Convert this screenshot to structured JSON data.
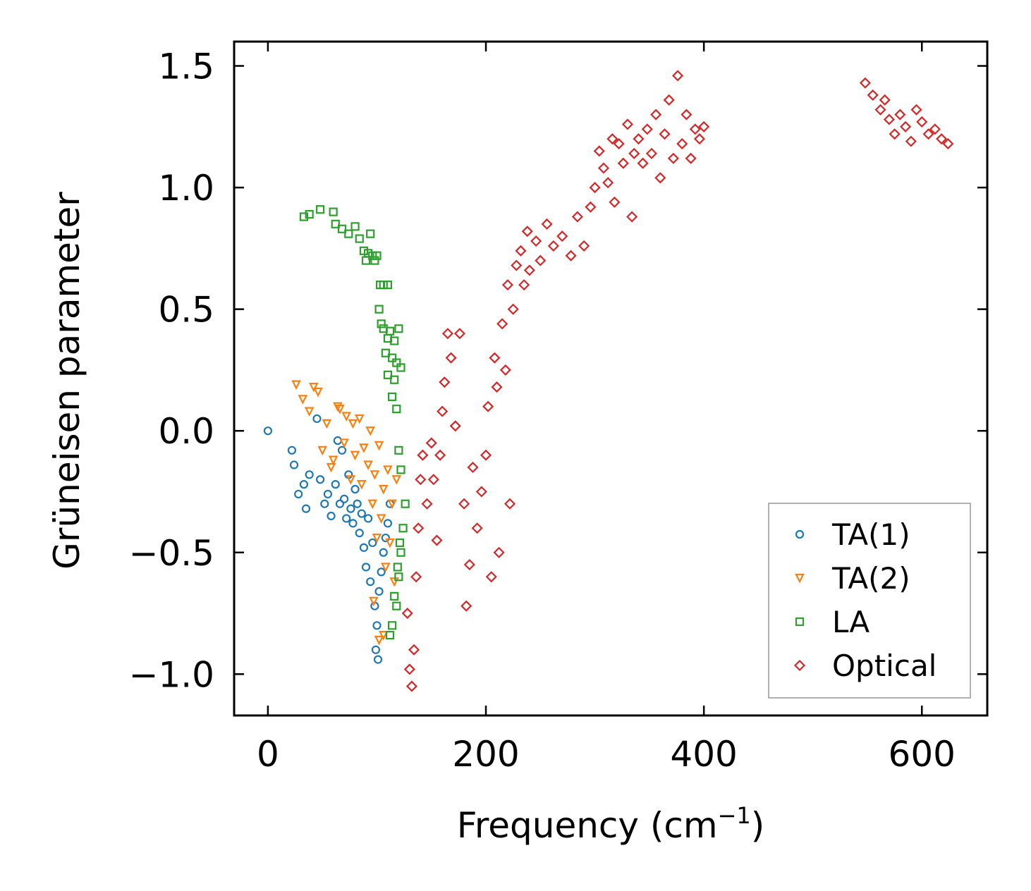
{
  "chart_data": {
    "type": "scatter",
    "xlabel": "Frequency (cm",
    "xlabel_sup": "−1",
    "xlabel_end": ")",
    "ylabel": "Grüneisen parameter",
    "xlim": [
      -31,
      660
    ],
    "ylim": [
      -1.17,
      1.6
    ],
    "xticks": [
      0,
      200,
      400,
      600
    ],
    "yticks": [
      -1.0,
      -0.5,
      0.0,
      0.5,
      1.0,
      1.5
    ],
    "xtick_labels": [
      "0",
      "200",
      "400",
      "600"
    ],
    "ytick_labels": [
      "−1.0",
      "−0.5",
      "0.0",
      "0.5",
      "1.0",
      "1.5"
    ],
    "legend_position": "lower-right",
    "series": [
      {
        "name": "TA(1)",
        "marker": "circle",
        "color": "#1f77b4",
        "points": [
          [
            0,
            0.0
          ],
          [
            22,
            -0.08
          ],
          [
            24,
            -0.14
          ],
          [
            28,
            -0.26
          ],
          [
            33,
            -0.22
          ],
          [
            35,
            -0.32
          ],
          [
            38,
            -0.18
          ],
          [
            45,
            0.05
          ],
          [
            48,
            -0.2
          ],
          [
            52,
            -0.3
          ],
          [
            55,
            -0.26
          ],
          [
            58,
            -0.35
          ],
          [
            62,
            -0.22
          ],
          [
            64,
            -0.04
          ],
          [
            66,
            -0.3
          ],
          [
            68,
            -0.08
          ],
          [
            70,
            -0.28
          ],
          [
            72,
            -0.36
          ],
          [
            74,
            -0.18
          ],
          [
            76,
            -0.32
          ],
          [
            78,
            -0.38
          ],
          [
            80,
            -0.24
          ],
          [
            82,
            -0.3
          ],
          [
            84,
            -0.42
          ],
          [
            86,
            -0.34
          ],
          [
            88,
            -0.48
          ],
          [
            90,
            -0.56
          ],
          [
            92,
            -0.36
          ],
          [
            94,
            -0.62
          ],
          [
            96,
            -0.46
          ],
          [
            98,
            -0.72
          ],
          [
            99,
            -0.9
          ],
          [
            100,
            -0.8
          ],
          [
            101,
            -0.94
          ],
          [
            102,
            -0.66
          ],
          [
            104,
            -0.58
          ],
          [
            106,
            -0.5
          ],
          [
            108,
            -0.44
          ],
          [
            110,
            -0.38
          ],
          [
            112,
            -0.3
          ]
        ]
      },
      {
        "name": "TA(2)",
        "marker": "triangle-down",
        "color": "#ff7f0e",
        "points": [
          [
            26,
            0.19
          ],
          [
            32,
            0.13
          ],
          [
            38,
            0.08
          ],
          [
            42,
            0.18
          ],
          [
            46,
            0.16
          ],
          [
            50,
            -0.08
          ],
          [
            54,
            0.03
          ],
          [
            58,
            -0.15
          ],
          [
            60,
            -0.12
          ],
          [
            64,
            0.1
          ],
          [
            66,
            0.09
          ],
          [
            70,
            -0.05
          ],
          [
            72,
            0.06
          ],
          [
            76,
            -0.2
          ],
          [
            78,
            0.03
          ],
          [
            80,
            -0.1
          ],
          [
            84,
            0.05
          ],
          [
            86,
            -0.22
          ],
          [
            88,
            -0.07
          ],
          [
            92,
            -0.14
          ],
          [
            94,
            0.0
          ],
          [
            96,
            -0.3
          ],
          [
            98,
            -0.18
          ],
          [
            100,
            -0.44
          ],
          [
            102,
            -0.06
          ],
          [
            104,
            -0.36
          ],
          [
            106,
            -0.24
          ],
          [
            108,
            -0.56
          ],
          [
            110,
            -0.16
          ],
          [
            112,
            -0.46
          ],
          [
            114,
            -0.3
          ],
          [
            116,
            -0.62
          ],
          [
            118,
            -0.2
          ],
          [
            102,
            -0.86
          ],
          [
            106,
            -0.84
          ],
          [
            97,
            -0.7
          ]
        ]
      },
      {
        "name": "LA",
        "marker": "square",
        "color": "#2ca02c",
        "points": [
          [
            33,
            0.88
          ],
          [
            38,
            0.89
          ],
          [
            48,
            0.91
          ],
          [
            60,
            0.9
          ],
          [
            62,
            0.85
          ],
          [
            68,
            0.83
          ],
          [
            74,
            0.81
          ],
          [
            80,
            0.84
          ],
          [
            84,
            0.79
          ],
          [
            88,
            0.74
          ],
          [
            90,
            0.7
          ],
          [
            92,
            0.73
          ],
          [
            94,
            0.81
          ],
          [
            96,
            0.72
          ],
          [
            98,
            0.7
          ],
          [
            100,
            0.72
          ],
          [
            103,
            0.6
          ],
          [
            106,
            0.6
          ],
          [
            110,
            0.6
          ],
          [
            102,
            0.5
          ],
          [
            104,
            0.44
          ],
          [
            106,
            0.42
          ],
          [
            110,
            0.38
          ],
          [
            112,
            0.41
          ],
          [
            116,
            0.37
          ],
          [
            120,
            0.42
          ],
          [
            108,
            0.32
          ],
          [
            114,
            0.3
          ],
          [
            118,
            0.28
          ],
          [
            122,
            0.26
          ],
          [
            110,
            0.23
          ],
          [
            116,
            0.21
          ],
          [
            114,
            0.14
          ],
          [
            118,
            0.09
          ],
          [
            120,
            -0.08
          ],
          [
            122,
            -0.16
          ],
          [
            112,
            -0.84
          ],
          [
            114,
            -0.8
          ],
          [
            118,
            -0.72
          ],
          [
            120,
            -0.6
          ],
          [
            122,
            -0.5
          ],
          [
            124,
            -0.4
          ],
          [
            126,
            -0.3
          ],
          [
            116,
            -0.68
          ],
          [
            119,
            -0.56
          ],
          [
            121,
            -0.46
          ]
        ]
      },
      {
        "name": "Optical",
        "marker": "diamond",
        "color": "#d62728",
        "points": [
          [
            128,
            -0.75
          ],
          [
            130,
            -0.98
          ],
          [
            132,
            -1.05
          ],
          [
            134,
            -0.9
          ],
          [
            136,
            -0.6
          ],
          [
            138,
            -0.4
          ],
          [
            140,
            -0.2
          ],
          [
            142,
            -0.1
          ],
          [
            146,
            -0.3
          ],
          [
            150,
            -0.05
          ],
          [
            152,
            -0.2
          ],
          [
            155,
            -0.45
          ],
          [
            158,
            -0.1
          ],
          [
            160,
            0.08
          ],
          [
            162,
            0.2
          ],
          [
            165,
            0.4
          ],
          [
            168,
            0.3
          ],
          [
            172,
            0.02
          ],
          [
            176,
            0.4
          ],
          [
            180,
            -0.3
          ],
          [
            182,
            -0.72
          ],
          [
            185,
            -0.55
          ],
          [
            188,
            -0.15
          ],
          [
            192,
            -0.4
          ],
          [
            196,
            -0.25
          ],
          [
            200,
            -0.1
          ],
          [
            202,
            0.1
          ],
          [
            205,
            -0.6
          ],
          [
            208,
            0.3
          ],
          [
            210,
            0.18
          ],
          [
            212,
            -0.5
          ],
          [
            215,
            0.44
          ],
          [
            218,
            0.25
          ],
          [
            220,
            0.6
          ],
          [
            222,
            -0.3
          ],
          [
            225,
            0.5
          ],
          [
            228,
            0.68
          ],
          [
            232,
            0.74
          ],
          [
            235,
            0.6
          ],
          [
            238,
            0.82
          ],
          [
            240,
            0.66
          ],
          [
            246,
            0.78
          ],
          [
            250,
            0.7
          ],
          [
            256,
            0.85
          ],
          [
            262,
            0.76
          ],
          [
            270,
            0.8
          ],
          [
            278,
            0.72
          ],
          [
            284,
            0.88
          ],
          [
            290,
            0.76
          ],
          [
            296,
            0.92
          ],
          [
            300,
            1.0
          ],
          [
            304,
            1.15
          ],
          [
            308,
            1.08
          ],
          [
            312,
            1.02
          ],
          [
            316,
            1.2
          ],
          [
            318,
            0.94
          ],
          [
            322,
            1.18
          ],
          [
            326,
            1.1
          ],
          [
            330,
            1.26
          ],
          [
            334,
            0.88
          ],
          [
            336,
            1.14
          ],
          [
            340,
            1.2
          ],
          [
            344,
            1.1
          ],
          [
            348,
            1.24
          ],
          [
            352,
            1.14
          ],
          [
            356,
            1.3
          ],
          [
            360,
            1.04
          ],
          [
            364,
            1.22
          ],
          [
            368,
            1.36
          ],
          [
            372,
            1.12
          ],
          [
            376,
            1.46
          ],
          [
            380,
            1.18
          ],
          [
            384,
            1.3
          ],
          [
            388,
            1.12
          ],
          [
            392,
            1.24
          ],
          [
            396,
            1.2
          ],
          [
            400,
            1.25
          ],
          [
            548,
            1.43
          ],
          [
            555,
            1.38
          ],
          [
            562,
            1.32
          ],
          [
            566,
            1.36
          ],
          [
            570,
            1.28
          ],
          [
            575,
            1.22
          ],
          [
            580,
            1.3
          ],
          [
            585,
            1.25
          ],
          [
            590,
            1.19
          ],
          [
            595,
            1.32
          ],
          [
            600,
            1.27
          ],
          [
            606,
            1.22
          ],
          [
            612,
            1.24
          ],
          [
            618,
            1.2
          ],
          [
            624,
            1.18
          ]
        ]
      }
    ]
  }
}
